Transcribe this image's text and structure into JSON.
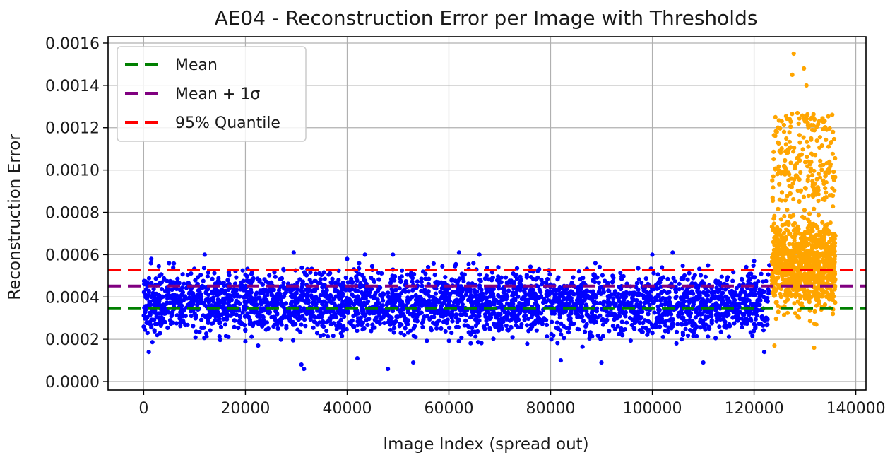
{
  "chart_data": {
    "type": "scatter",
    "title": "AE04 - Reconstruction Error per Image with Thresholds",
    "xlabel": "Image Index (spread out)",
    "ylabel": "Reconstruction Error",
    "xlim": [
      -7000,
      142000
    ],
    "ylim": [
      -4e-05,
      0.00163
    ],
    "xticks": [
      0,
      20000,
      40000,
      60000,
      80000,
      100000,
      120000,
      140000
    ],
    "xtick_labels": [
      "0",
      "20000",
      "40000",
      "60000",
      "80000",
      "100000",
      "120000",
      "140000"
    ],
    "yticks": [
      0.0,
      0.0002,
      0.0004,
      0.0006,
      0.0008,
      0.001,
      0.0012,
      0.0014,
      0.0016
    ],
    "ytick_labels": [
      "0.0000",
      "0.0002",
      "0.0004",
      "0.0006",
      "0.0008",
      "0.0010",
      "0.0012",
      "0.0014",
      "0.0016"
    ],
    "grid": true,
    "legend_position": "top-left",
    "thresholds": [
      {
        "name": "Mean",
        "value": 0.000345,
        "color": "#008000",
        "style": "dashed"
      },
      {
        "name": "Mean + 1σ",
        "value": 0.000452,
        "color": "#800080",
        "style": "dashed"
      },
      {
        "name": "95% Quantile",
        "value": 0.000528,
        "color": "#ff0000",
        "style": "dashed"
      }
    ],
    "series": [
      {
        "color": "#0000ff",
        "x_range": [
          0,
          123000
        ],
        "typical_range": [
          0.00018,
          0.00056
        ],
        "points": [
          [
            0,
            0.00026
          ],
          [
            1000,
            0.00014
          ],
          [
            1500,
            0.00058
          ],
          [
            5000,
            0.00056
          ],
          [
            12000,
            0.0006
          ],
          [
            20000,
            0.00019
          ],
          [
            22500,
            0.00017
          ],
          [
            29500,
            0.00061
          ],
          [
            31000,
            8e-05
          ],
          [
            31500,
            6e-05
          ],
          [
            40000,
            0.00058
          ],
          [
            42000,
            0.00011
          ],
          [
            43500,
            0.0006
          ],
          [
            48000,
            6e-05
          ],
          [
            49000,
            0.0006
          ],
          [
            53000,
            9e-05
          ],
          [
            62000,
            0.00061
          ],
          [
            66000,
            0.0006
          ],
          [
            80000,
            0.00038
          ],
          [
            82000,
            0.0001
          ],
          [
            90000,
            9e-05
          ],
          [
            100000,
            0.0006
          ],
          [
            104000,
            0.00061
          ],
          [
            110000,
            9e-05
          ],
          [
            120000,
            0.00057
          ],
          [
            122000,
            0.00014
          ],
          [
            123000,
            0.00055
          ]
        ]
      },
      {
        "color": "#ffa500",
        "x_range": [
          123500,
          136000
        ],
        "typical_range": [
          0.00028,
          0.00085
        ],
        "points": [
          [
            124000,
            0.00017
          ],
          [
            125000,
            0.00109
          ],
          [
            126500,
            0.00108
          ],
          [
            127500,
            0.00145
          ],
          [
            127800,
            0.00155
          ],
          [
            129000,
            0.00113
          ],
          [
            129800,
            0.00148
          ],
          [
            130300,
            0.0014
          ],
          [
            130700,
            0.0012
          ],
          [
            131800,
            0.00016
          ],
          [
            133000,
            0.00102
          ],
          [
            134000,
            0.00097
          ],
          [
            135500,
            0.00118
          ]
        ]
      }
    ]
  }
}
